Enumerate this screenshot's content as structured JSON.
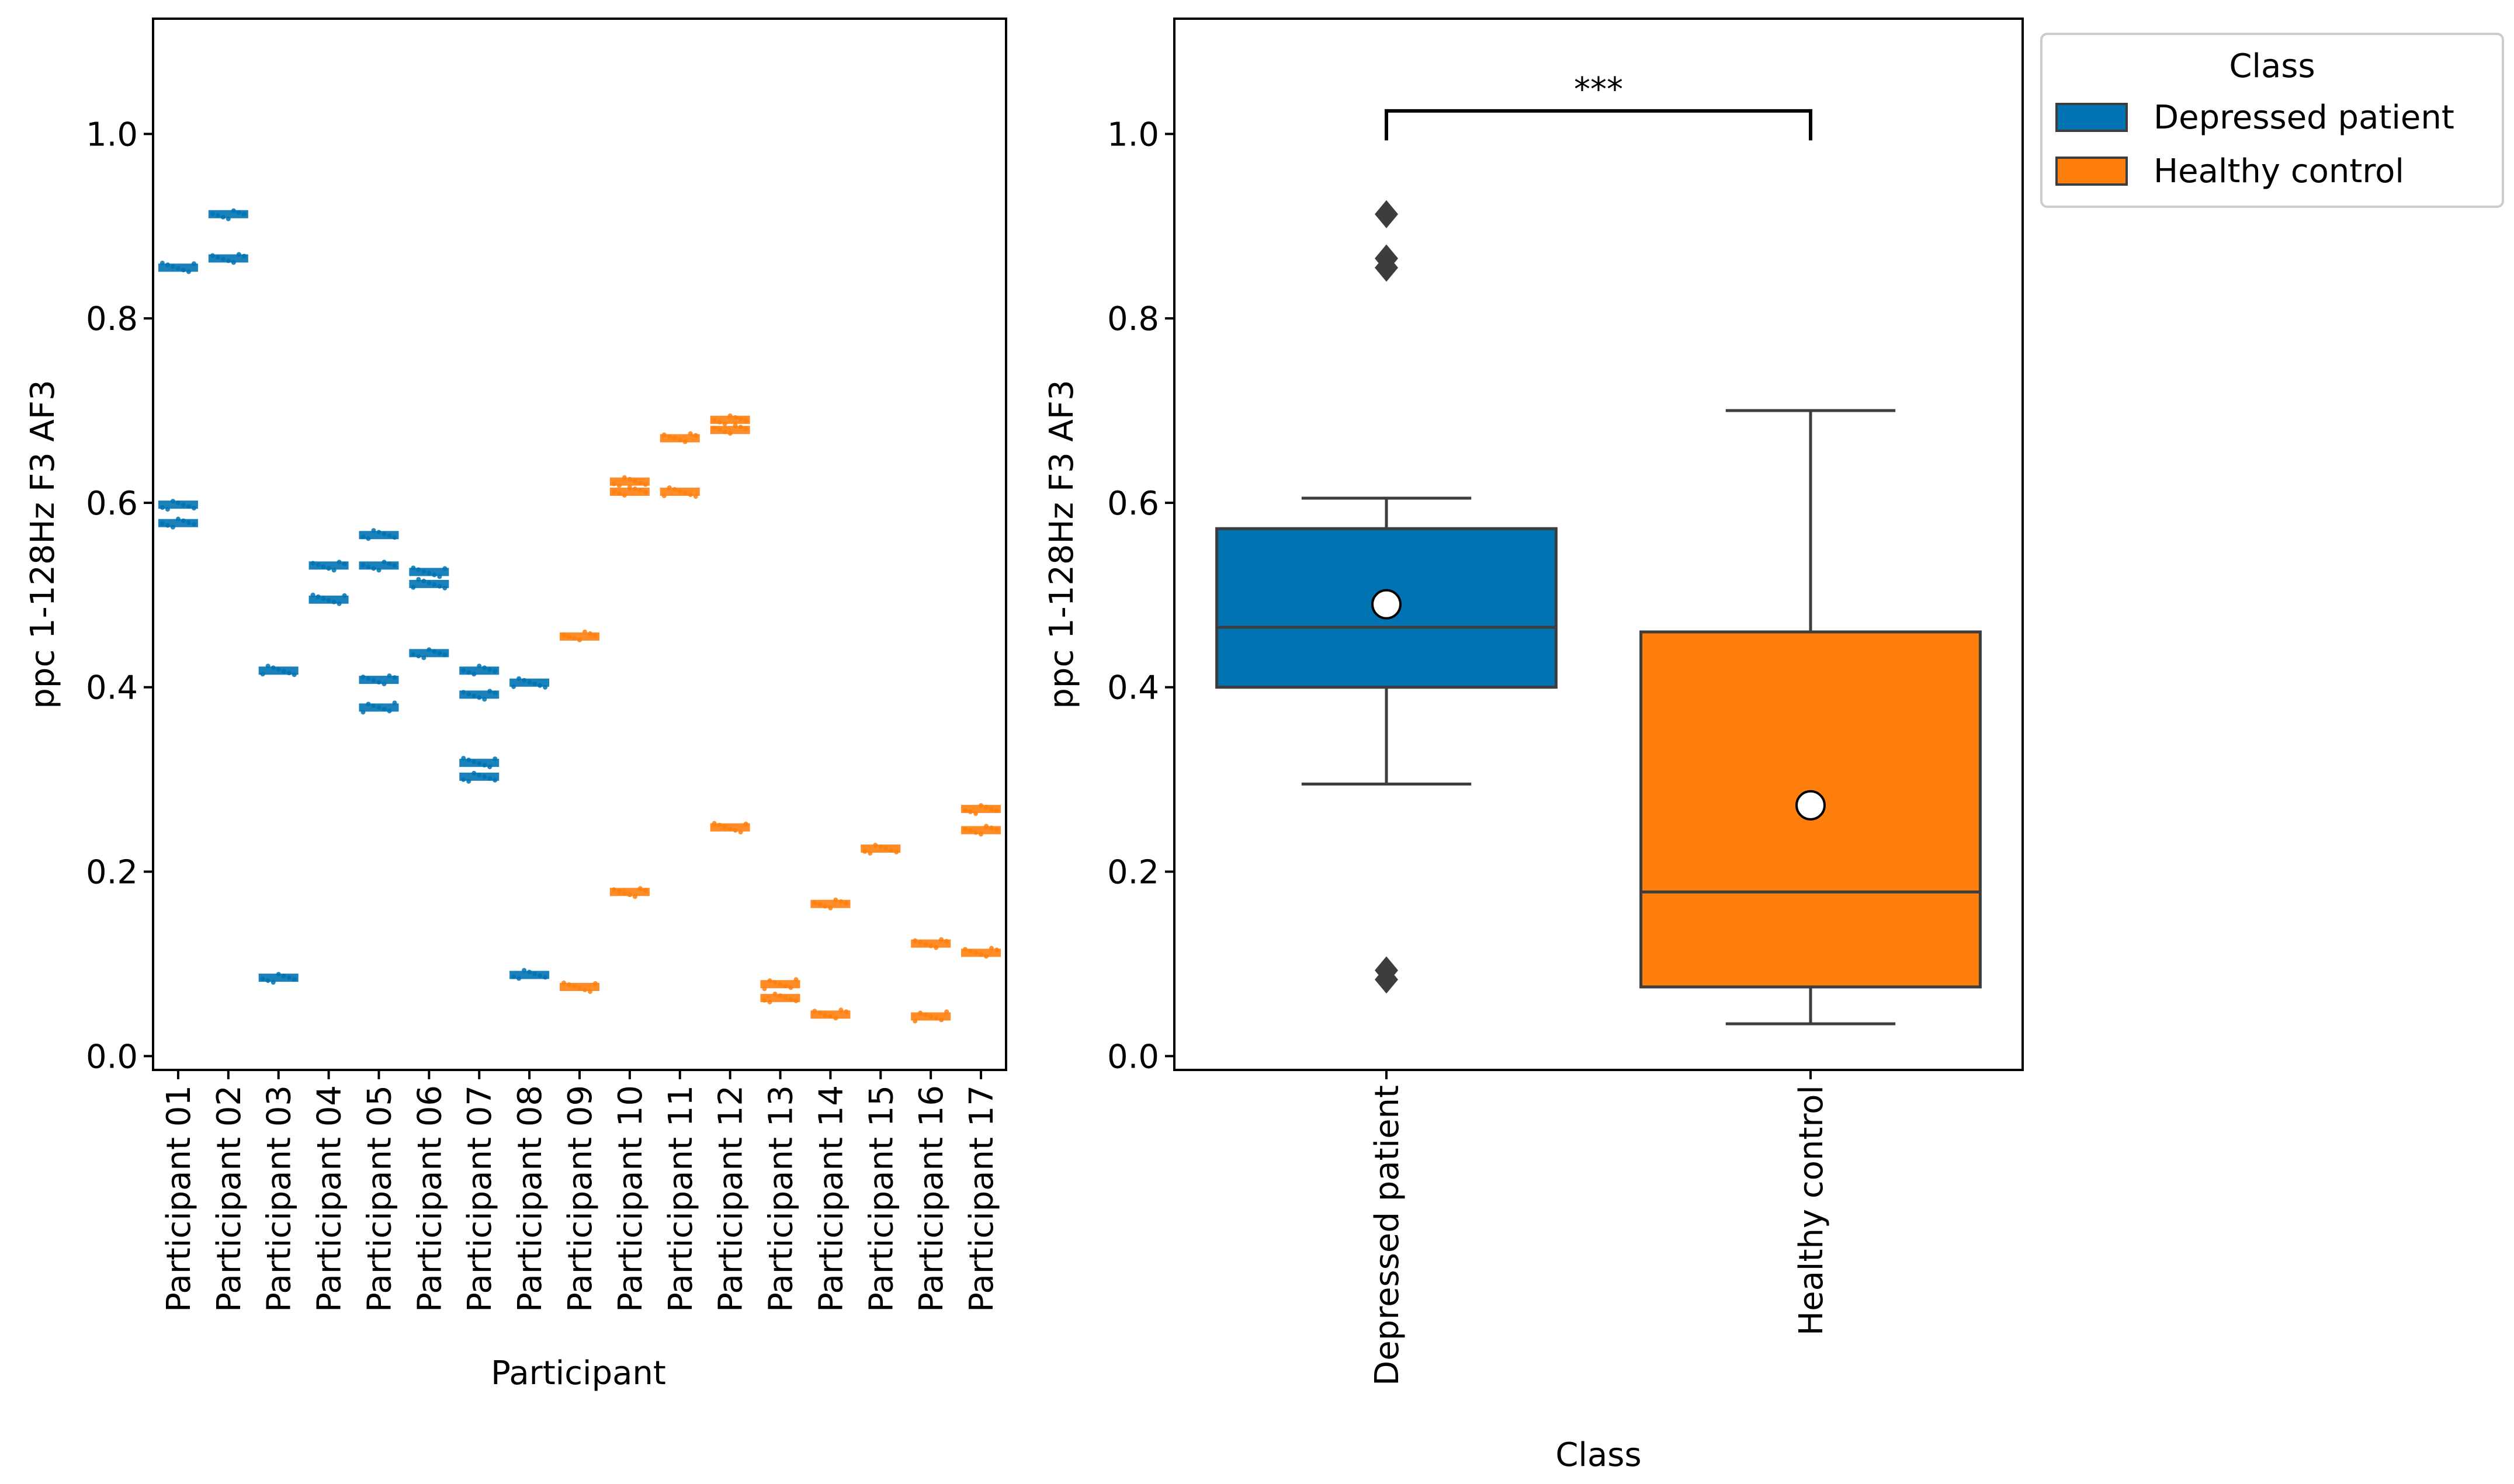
{
  "chart_data": [
    {
      "type": "scatter",
      "xlabel": "Participant",
      "ylabel": "ppc  1-128Hz  F3  AF3",
      "ylim": [
        -0.015,
        1.125
      ],
      "yticks": [
        "0.0",
        "0.2",
        "0.4",
        "0.6",
        "0.8",
        "1.0"
      ],
      "categories": [
        "Participant 01",
        "Participant 02",
        "Participant 03",
        "Participant 04",
        "Participant 05",
        "Participant 06",
        "Participant 07",
        "Participant 08",
        "Participant 09",
        "Participant 10",
        "Participant 11",
        "Participant 12",
        "Participant 13",
        "Participant 14",
        "Participant 15",
        "Participant 16",
        "Participant 17"
      ],
      "groups": [
        "Depressed patient",
        "Depressed patient",
        "Depressed patient",
        "Depressed patient",
        "Depressed patient",
        "Depressed patient",
        "Depressed patient",
        "Depressed patient",
        "Healthy control",
        "Healthy control",
        "Healthy control",
        "Healthy control",
        "Healthy control",
        "Healthy control",
        "Healthy control",
        "Healthy control",
        "Healthy control"
      ],
      "clusters": [
        [
          0.855,
          0.598,
          0.578
        ],
        [
          0.913,
          0.865
        ],
        [
          0.418,
          0.085
        ],
        [
          0.532,
          0.495
        ],
        [
          0.565,
          0.532,
          0.408,
          0.378
        ],
        [
          0.525,
          0.512,
          0.437
        ],
        [
          0.418,
          0.392,
          0.318,
          0.303
        ],
        [
          0.405,
          0.088
        ],
        [
          0.455,
          0.075
        ],
        [
          0.623,
          0.612,
          0.178
        ],
        [
          0.67,
          0.612
        ],
        [
          0.69,
          0.679,
          0.248
        ],
        [
          0.078,
          0.063
        ],
        [
          0.165,
          0.045
        ],
        [
          0.225
        ],
        [
          0.122,
          0.043
        ],
        [
          0.268,
          0.245,
          0.112
        ]
      ]
    },
    {
      "type": "box",
      "xlabel": "Class",
      "ylabel": "ppc  1-128Hz  F3  AF3",
      "ylim": [
        -0.015,
        1.125
      ],
      "yticks": [
        "0.0",
        "0.2",
        "0.4",
        "0.6",
        "0.8",
        "1.0"
      ],
      "categories": [
        "Depressed patient",
        "Healthy control"
      ],
      "boxes": [
        {
          "name": "Depressed patient",
          "whisker_low": 0.295,
          "q1": 0.4,
          "median": 0.465,
          "q3": 0.572,
          "whisker_high": 0.605,
          "mean": 0.49,
          "outliers": [
            0.913,
            0.865,
            0.855,
            0.093,
            0.083
          ]
        },
        {
          "name": "Healthy control",
          "whisker_low": 0.035,
          "q1": 0.075,
          "median": 0.178,
          "q3": 0.46,
          "whisker_high": 0.7,
          "mean": 0.272,
          "outliers": []
        }
      ],
      "significance": "***",
      "legend": {
        "title": "Class",
        "entries": [
          "Depressed patient",
          "Healthy control"
        ],
        "placement": "outside-top-right"
      }
    }
  ],
  "colors": {
    "depressed": "#0173b2",
    "healthy": "#ff7f0e",
    "box_line": "#3d3d3d",
    "outlier": "#3d3d3d",
    "mean_marker": "#ffffff"
  }
}
